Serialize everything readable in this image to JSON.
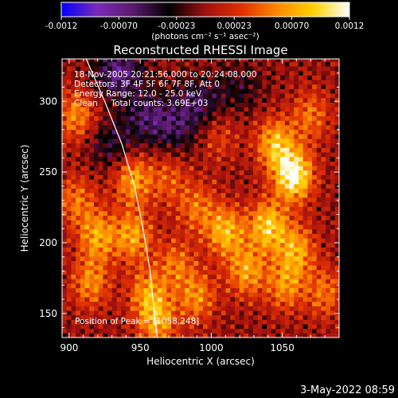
{
  "colors": {
    "background": "#000000",
    "foreground": "#ffffff",
    "limb": "#ffffff",
    "colormap": [
      "#0000ff",
      "#7a2bb8",
      "#5a1a6a",
      "#000000",
      "#a01010",
      "#e03000",
      "#ff8a00",
      "#ffd000",
      "#ffffff"
    ]
  },
  "colorbar": {
    "ticks": [
      "-0.0012",
      "-0.00070",
      "-0.00023",
      "0.00023",
      "0.00070",
      "0.0012"
    ],
    "units": "(photons cm⁻² s⁻¹ asec⁻²)"
  },
  "chart_data": {
    "type": "heatmap",
    "title": "Reconstructed RHESSI Image",
    "xlabel": "Heliocentric X (arcsec)",
    "ylabel": "Heliocentric Y (arcsec)",
    "xlim": [
      895,
      1090
    ],
    "ylim": [
      133,
      330
    ],
    "clim": [
      -0.0012,
      0.0012
    ],
    "xticks": [
      900,
      950,
      1000,
      1050
    ],
    "yticks": [
      150,
      200,
      250,
      300
    ],
    "limb_points": [
      [
        912,
        330
      ],
      [
        925,
        300
      ],
      [
        937,
        270
      ],
      [
        946,
        240
      ],
      [
        952,
        210
      ],
      [
        957,
        180
      ],
      [
        960,
        150
      ],
      [
        962,
        133
      ]
    ],
    "peak": [
      1058,
      248
    ],
    "hot_spots": [
      {
        "x": 1058,
        "y": 248,
        "value": 0.0012
      },
      {
        "x": 1045,
        "y": 270,
        "value": 0.0008
      },
      {
        "x": 1040,
        "y": 212,
        "value": 0.0009
      },
      {
        "x": 1060,
        "y": 195,
        "value": 0.0007
      },
      {
        "x": 1052,
        "y": 170,
        "value": 0.0006
      },
      {
        "x": 1010,
        "y": 208,
        "value": 0.0008
      },
      {
        "x": 1025,
        "y": 180,
        "value": 0.0007
      },
      {
        "x": 990,
        "y": 225,
        "value": 0.0005
      },
      {
        "x": 990,
        "y": 162,
        "value": 0.0006
      },
      {
        "x": 1080,
        "y": 165,
        "value": 0.0005
      },
      {
        "x": 1070,
        "y": 290,
        "value": 0.0005
      },
      {
        "x": 1005,
        "y": 275,
        "value": 0.0003
      },
      {
        "x": 905,
        "y": 290,
        "value": 0.0006
      },
      {
        "x": 905,
        "y": 230,
        "value": 0.0005
      },
      {
        "x": 920,
        "y": 205,
        "value": 0.0007
      },
      {
        "x": 915,
        "y": 172,
        "value": 0.0006
      },
      {
        "x": 945,
        "y": 245,
        "value": 0.0007
      },
      {
        "x": 945,
        "y": 205,
        "value": 0.0007
      },
      {
        "x": 955,
        "y": 165,
        "value": 0.0006
      },
      {
        "x": 962,
        "y": 145,
        "value": 0.0007
      },
      {
        "x": 975,
        "y": 185,
        "value": 0.0005
      },
      {
        "x": 970,
        "y": 245,
        "value": 0.0004
      }
    ],
    "cold_spots": [
      {
        "x": 935,
        "y": 320,
        "value": -0.0007
      },
      {
        "x": 955,
        "y": 290,
        "value": -0.0005
      },
      {
        "x": 990,
        "y": 300,
        "value": -0.0005
      },
      {
        "x": 975,
        "y": 280,
        "value": -0.0004
      },
      {
        "x": 1020,
        "y": 310,
        "value": -0.0003
      },
      {
        "x": 930,
        "y": 270,
        "value": -0.0004
      }
    ],
    "annotations": [
      "18-Nov-2005 20:21:56.000 to 20:24:08.000",
      "Detectors: 3F 4F 5F 6F 7F 8F, Att 0",
      "Energy Range: 12.0 - 25.0 keV",
      "Clean     Total counts: 3.69E+03"
    ],
    "peak_label": "Position of Peak = [1058,248]"
  },
  "footer": {
    "date": "3-May-2022 08:59"
  }
}
